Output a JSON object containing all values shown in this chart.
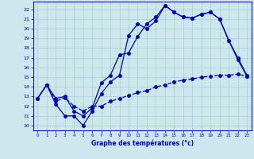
{
  "xlabel": "Graphe des températures (°c)",
  "xlim": [
    -0.5,
    23.5
  ],
  "ylim": [
    9.5,
    22.8
  ],
  "yticks": [
    10,
    11,
    12,
    13,
    14,
    15,
    16,
    17,
    18,
    19,
    20,
    21,
    22
  ],
  "xticks": [
    0,
    1,
    2,
    3,
    4,
    5,
    6,
    7,
    8,
    9,
    10,
    11,
    12,
    13,
    14,
    15,
    16,
    17,
    18,
    19,
    20,
    21,
    22,
    23
  ],
  "background_color": "#cce8ec",
  "grid_color": "#aacccc",
  "line_color": "#0000bb",
  "line1_x": [
    0,
    1,
    2,
    3,
    4,
    5,
    6,
    7,
    8,
    9,
    10,
    11,
    12,
    13,
    14,
    15,
    16,
    17,
    18,
    19,
    20,
    21,
    22,
    23
  ],
  "line1_y": [
    12.8,
    14.2,
    12.2,
    11.0,
    11.0,
    10.0,
    11.5,
    13.3,
    14.5,
    15.2,
    19.3,
    20.5,
    20.0,
    20.8,
    22.4,
    21.7,
    21.2,
    21.1,
    21.5,
    21.7,
    21.0,
    18.8,
    16.8,
    15.1
  ],
  "line2_x": [
    0,
    1,
    2,
    3,
    4,
    5,
    6,
    7,
    8,
    9,
    10,
    11,
    12,
    13,
    14,
    15,
    16,
    17,
    18,
    19,
    20,
    21,
    22,
    23
  ],
  "line2_y": [
    12.8,
    14.2,
    12.8,
    13.0,
    11.5,
    11.0,
    11.8,
    14.4,
    15.2,
    17.3,
    17.5,
    19.2,
    20.5,
    21.2,
    22.4,
    21.7,
    21.2,
    21.1,
    21.5,
    21.7,
    21.0,
    18.8,
    17.0,
    15.2
  ],
  "line3_x": [
    0,
    1,
    2,
    3,
    4,
    5,
    6,
    7,
    8,
    9,
    10,
    11,
    12,
    13,
    14,
    15,
    16,
    17,
    18,
    19,
    20,
    21,
    22,
    23
  ],
  "line3_y": [
    12.8,
    14.2,
    12.5,
    12.9,
    12.0,
    11.5,
    12.0,
    12.0,
    12.5,
    12.8,
    13.1,
    13.4,
    13.6,
    14.0,
    14.2,
    14.5,
    14.7,
    14.8,
    15.0,
    15.1,
    15.2,
    15.2,
    15.3,
    15.1
  ]
}
